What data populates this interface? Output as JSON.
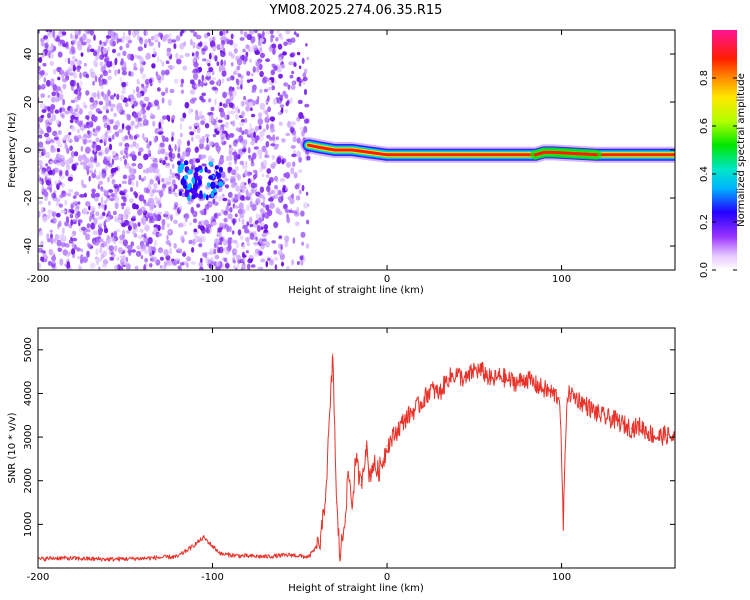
{
  "title": "YM08.2025.274.06.35.R15",
  "chart_data": [
    {
      "type": "heatmap",
      "xlabel": "Height of straight line (km)",
      "ylabel": "Frequency (Hz)",
      "xlim": [
        -200,
        165
      ],
      "ylim": [
        -50,
        50
      ],
      "xticks": [
        -200,
        -100,
        0,
        100
      ],
      "yticks": [
        -40,
        -20,
        0,
        20,
        40
      ],
      "colorbar": {
        "label": "Normalized spectral amplitude",
        "range": [
          0,
          1
        ],
        "ticks": [
          "0.0",
          "0.2",
          "0.4",
          "0.6",
          "0.8"
        ]
      },
      "noise_region_x": [
        -200,
        -45
      ],
      "cluster": {
        "x": [
          -120,
          -95
        ],
        "y": [
          -20,
          -5
        ]
      },
      "line": [
        {
          "x": -45,
          "y": 2
        },
        {
          "x": -38,
          "y": 1
        },
        {
          "x": -30,
          "y": 0
        },
        {
          "x": -20,
          "y": 0
        },
        {
          "x": -10,
          "y": -1
        },
        {
          "x": 0,
          "y": -2
        },
        {
          "x": 20,
          "y": -2
        },
        {
          "x": 50,
          "y": -2
        },
        {
          "x": 85,
          "y": -2
        },
        {
          "x": 90,
          "y": -1
        },
        {
          "x": 95,
          "y": -1
        },
        {
          "x": 120,
          "y": -2
        },
        {
          "x": 165,
          "y": -2
        }
      ]
    },
    {
      "type": "line",
      "xlabel": "Height of straight line (km)",
      "ylabel": "SNR (10 * v/v)",
      "xlim": [
        -200,
        165
      ],
      "ylim": [
        0,
        5500
      ],
      "xticks": [
        -200,
        -100,
        0,
        100
      ],
      "yticks": [
        1000,
        2000,
        3000,
        4000,
        5000
      ],
      "color": "#e8332a",
      "series": [
        {
          "x": [
            -200,
            -190,
            -180,
            -160,
            -140,
            -120,
            -112,
            -105,
            -100,
            -95,
            -85,
            -70,
            -55,
            -45,
            -38,
            -35,
            -31,
            -29,
            -27,
            -25,
            -22,
            -20,
            -18,
            -15,
            -12,
            -10,
            -8,
            -5,
            -2,
            0,
            5,
            10,
            15,
            20,
            25,
            30,
            35,
            40,
            45,
            50,
            55,
            60,
            65,
            70,
            75,
            80,
            85,
            90,
            95,
            99,
            101,
            103,
            105,
            110,
            115,
            120,
            125,
            130,
            135,
            140,
            145,
            150,
            155,
            160,
            165
          ],
          "y": [
            200,
            230,
            220,
            200,
            220,
            260,
            480,
            700,
            500,
            320,
            280,
            260,
            300,
            250,
            600,
            1800,
            4900,
            1500,
            300,
            800,
            2200,
            1400,
            2500,
            1900,
            2800,
            2100,
            2400,
            2200,
            2500,
            2800,
            3100,
            3400,
            3600,
            3800,
            4100,
            4000,
            4350,
            4450,
            4300,
            4550,
            4500,
            4300,
            4400,
            4300,
            4250,
            4350,
            4200,
            4100,
            4000,
            3900,
            1000,
            3900,
            4000,
            3850,
            3700,
            3550,
            3450,
            3400,
            3300,
            3200,
            3250,
            3100,
            3000,
            3050,
            2950
          ]
        }
      ]
    }
  ]
}
